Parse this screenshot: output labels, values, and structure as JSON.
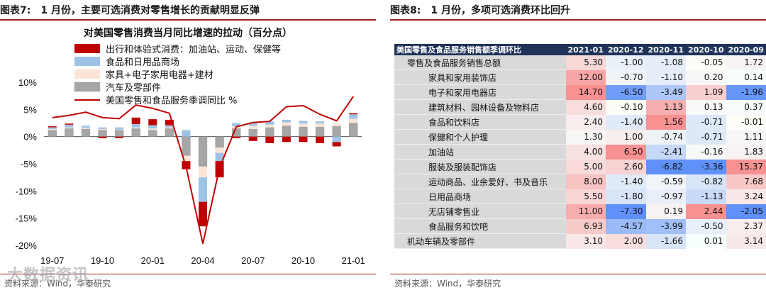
{
  "left": {
    "header": {
      "label": "图表7:",
      "title": "1 月份，主要可选消费对零售增长的贡献明显反弹"
    },
    "source": "资料来源：Wind，华泰研究",
    "watermark": "大数据资讯"
  },
  "right": {
    "header": {
      "label": "图表8:",
      "title": "1 月份，多项可选消费环比回升"
    },
    "source": "资料来源：Wind，华泰研究"
  },
  "colors": {
    "accent": "#9b1b1f",
    "line": "#c00000",
    "travel": "#c00000",
    "food": "#9dc3e6",
    "home": "#fbe5d6",
    "auto": "#a6a6a6",
    "table_header": "#1f3259"
  },
  "chart_data": [
    {
      "type": "bar",
      "title": "对美国零售消费当月同比增速的拉动（百分点）",
      "stacked": true,
      "categories": [
        "19-07",
        "19-08",
        "19-09",
        "19-10",
        "19-11",
        "19-12",
        "20-01",
        "20-02",
        "20-03",
        "20-04",
        "20-05",
        "20-06",
        "20-07",
        "20-08",
        "20-09",
        "20-10",
        "20-11",
        "20-12",
        "21-01"
      ],
      "x_tick_labels": [
        "19-07",
        "19-10",
        "20-01",
        "20-04",
        "20-07",
        "20-10",
        "21-01"
      ],
      "y_tick_labels": [
        "10%",
        "5%",
        "0%",
        "-5%",
        "-10%",
        "-15%",
        "-20%"
      ],
      "ylim": [
        -20,
        10
      ],
      "series": [
        {
          "name": "出行和体验式消费：加油站、运动、保健等",
          "type": "bar",
          "color": "#c00000",
          "values": [
            0.2,
            0.2,
            0.0,
            -0.3,
            -0.3,
            1.2,
            1.1,
            1.0,
            -1.5,
            -4.5,
            -3.0,
            -0.3,
            -0.8,
            -1.2,
            -1.0,
            -1.0,
            -1.2,
            -0.8,
            0.2
          ]
        },
        {
          "name": "食品和日用品商场",
          "type": "bar",
          "color": "#9dc3e6",
          "values": [
            0.3,
            0.5,
            0.4,
            0.3,
            0.4,
            0.6,
            0.6,
            0.4,
            1.2,
            -4.5,
            -1.5,
            0.6,
            0.6,
            0.6,
            0.5,
            0.5,
            0.4,
            -1.0,
            0.8
          ]
        },
        {
          "name": "家具+电子家用电器+建材",
          "type": "bar",
          "color": "#fbe5d6",
          "values": [
            0.2,
            0.2,
            0.2,
            0.2,
            0.1,
            0.2,
            0.3,
            0.2,
            -1.0,
            -2.0,
            -1.0,
            0.4,
            0.6,
            0.5,
            0.6,
            0.6,
            0.6,
            0.5,
            0.8
          ]
        },
        {
          "name": "汽车及零部件",
          "type": "bar",
          "color": "#a6a6a6",
          "values": [
            1.2,
            1.5,
            1.4,
            1.2,
            1.2,
            1.5,
            1.2,
            1.5,
            -3.5,
            -5.5,
            -2.0,
            1.5,
            1.4,
            1.7,
            2.0,
            1.8,
            1.8,
            1.9,
            2.5
          ]
        },
        {
          "name": "美国零售和食品服务季调同比 %",
          "type": "line",
          "color": "#c00000",
          "values": [
            3.5,
            3.9,
            4.5,
            3.5,
            3.3,
            5.8,
            5.2,
            4.3,
            -5.6,
            -19.7,
            -5.7,
            1.8,
            2.6,
            2.8,
            5.5,
            5.7,
            4.1,
            2.9,
            7.4
          ]
        }
      ]
    },
    {
      "type": "table",
      "columns": [
        "美国零售及食品服务销售额季调环比",
        "2021-01",
        "2020-12",
        "2020-11",
        "2020-10",
        "2020-09"
      ],
      "rows": [
        {
          "name": "零售及食品服务销售总额",
          "indent": 1,
          "values": [
            "5.30",
            "-1.00",
            "-1.08",
            "-0.05",
            "1.72"
          ]
        },
        {
          "name": "家具和家用装饰店",
          "indent": 2,
          "values": [
            "12.00",
            "-0.70",
            "-1.10",
            "0.20",
            "0.14"
          ]
        },
        {
          "name": "电子和家用电器店",
          "indent": 2,
          "values": [
            "14.70",
            "-6.50",
            "-3.49",
            "1.09",
            "-1.96"
          ]
        },
        {
          "name": "建筑材料、园林设备及物料店",
          "indent": 2,
          "values": [
            "4.60",
            "-0.10",
            "1.13",
            "0.13",
            "0.37"
          ]
        },
        {
          "name": "食品和饮料店",
          "indent": 2,
          "values": [
            "2.40",
            "-1.40",
            "1.56",
            "-0.71",
            "-0.01"
          ]
        },
        {
          "name": "保健和个人护理",
          "indent": 2,
          "values": [
            "1.30",
            "1.00",
            "-0.74",
            "-0.71",
            "1.11"
          ]
        },
        {
          "name": "加油站",
          "indent": 2,
          "values": [
            "4.00",
            "6.50",
            "-2.41",
            "-0.16",
            "1.83"
          ]
        },
        {
          "name": "服装及服装配饰店",
          "indent": 2,
          "values": [
            "5.00",
            "2.60",
            "-6.82",
            "-3.36",
            "15.37"
          ]
        },
        {
          "name": "运动商品、业余爱好、书及音乐",
          "indent": 2,
          "values": [
            "8.00",
            "-1.40",
            "-0.59",
            "-0.82",
            "7.68"
          ]
        },
        {
          "name": "日用品商场",
          "indent": 2,
          "values": [
            "5.50",
            "-1.80",
            "-0.97",
            "-1.13",
            "3.24"
          ]
        },
        {
          "name": "无店铺零售业",
          "indent": 2,
          "values": [
            "11.00",
            "-7.30",
            "0.19",
            "2.44",
            "-2.05"
          ]
        },
        {
          "name": "食品服务和饮吧",
          "indent": 2,
          "values": [
            "6.93",
            "-4.57",
            "-3.99",
            "-0.50",
            "2.37"
          ]
        },
        {
          "name": "机动车辆及零部件",
          "indent": 1,
          "values": [
            "3.10",
            "2.00",
            "-1.66",
            "0.01",
            "3.14"
          ]
        }
      ]
    }
  ]
}
